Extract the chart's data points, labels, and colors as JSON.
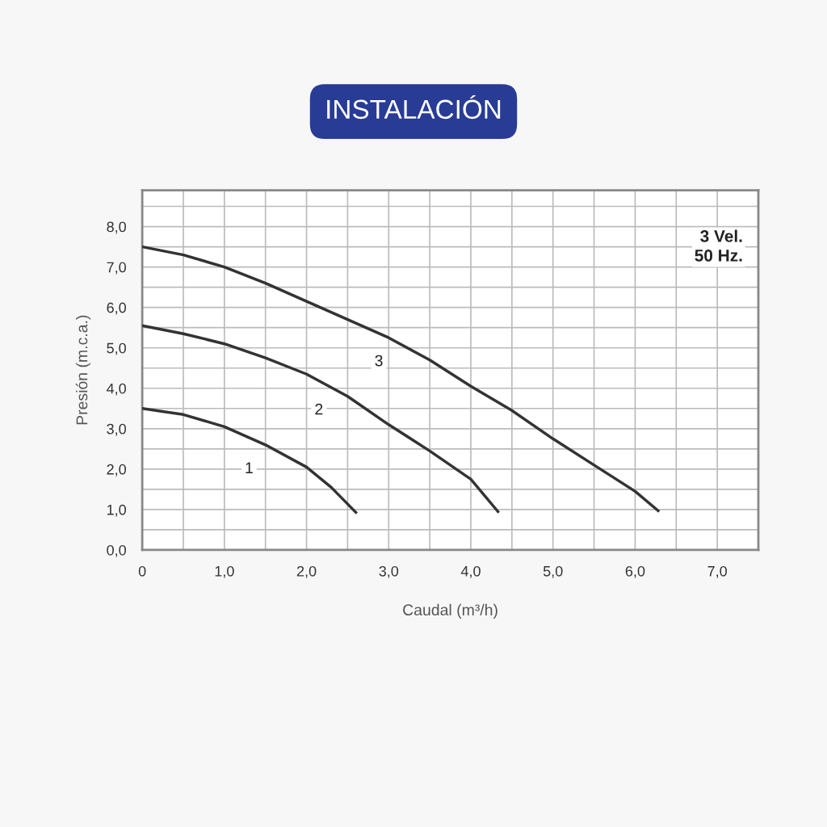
{
  "chart_data": {
    "type": "line",
    "title": "INSTALACIÓN",
    "xlabel": "Caudal (m³/h)",
    "ylabel": "Presión (m.c.a.)",
    "series": [
      {
        "color": "#333333",
        "x": [
          0,
          0.5,
          1,
          1.5,
          2,
          2.3,
          2.6
        ],
        "values": [
          3.5,
          3.35,
          3.05,
          2.6,
          2.05,
          1.55,
          0.93
        ]
      },
      {
        "color": "#333333",
        "x": [
          0,
          0.5,
          1,
          1.5,
          2,
          2.5,
          3,
          3.5,
          4,
          4.33
        ],
        "values": [
          5.55,
          5.35,
          5.1,
          4.75,
          4.35,
          3.8,
          3.1,
          2.45,
          1.75,
          0.95
        ]
      },
      {
        "color": "#333333",
        "x": [
          0,
          0.5,
          1,
          1.5,
          2,
          2.5,
          3,
          3.5,
          4,
          4.5,
          5,
          5.5,
          6,
          6.28
        ],
        "values": [
          7.5,
          7.3,
          7.0,
          6.6,
          6.15,
          5.7,
          5.25,
          4.7,
          4.05,
          3.45,
          2.75,
          2.1,
          1.45,
          0.97
        ]
      }
    ],
    "annotations": [
      {
        "text": "1",
        "x": 1.3,
        "y": 2.0
      },
      {
        "text": "2",
        "x": 2.15,
        "y": 3.45
      },
      {
        "text": "3",
        "x": 2.88,
        "y": 4.65
      },
      "3 Vel.\n50 Hz."
    ],
    "xlim": [
      0,
      7.5
    ],
    "ylim": [
      0,
      8.9
    ],
    "xticks": [
      {
        "value": 0,
        "label": "0"
      },
      {
        "value": 0.5,
        "label": null
      },
      {
        "value": 1,
        "label": "1,0"
      },
      {
        "value": 1.5,
        "label": null
      },
      {
        "value": 2,
        "label": "2,0"
      },
      {
        "value": 2.5,
        "label": null
      },
      {
        "value": 3,
        "label": "3,0"
      },
      {
        "value": 3.5,
        "label": null
      },
      {
        "value": 4,
        "label": "4,0"
      },
      {
        "value": 4.5,
        "label": null
      },
      {
        "value": 5,
        "label": "5,0"
      },
      {
        "value": 5.5,
        "label": null
      },
      {
        "value": 6,
        "label": "6,0"
      },
      {
        "value": 6.5,
        "label": null
      },
      {
        "value": 7,
        "label": "7,0"
      }
    ],
    "yticks": [
      {
        "value": 0,
        "label": "0,0"
      },
      {
        "value": 0.5,
        "label": null
      },
      {
        "value": 1,
        "label": "1,0"
      },
      {
        "value": 1.5,
        "label": null
      },
      {
        "value": 2,
        "label": "2,0"
      },
      {
        "value": 2.5,
        "label": null
      },
      {
        "value": 3,
        "label": "3,0"
      },
      {
        "value": 3.5,
        "label": null
      },
      {
        "value": 4,
        "label": "4,0"
      },
      {
        "value": 4.5,
        "label": null
      },
      {
        "value": 5,
        "label": "5,0"
      },
      {
        "value": 5.5,
        "label": null
      },
      {
        "value": 6,
        "label": "6,0"
      },
      {
        "value": 6.5,
        "label": null
      },
      {
        "value": 7,
        "label": "7,0"
      },
      {
        "value": 7.5,
        "label": null
      },
      {
        "value": 8,
        "label": "8,0"
      },
      {
        "value": 8.5,
        "label": null
      }
    ],
    "grid": true,
    "marker": "none",
    "line_style": "solid"
  }
}
